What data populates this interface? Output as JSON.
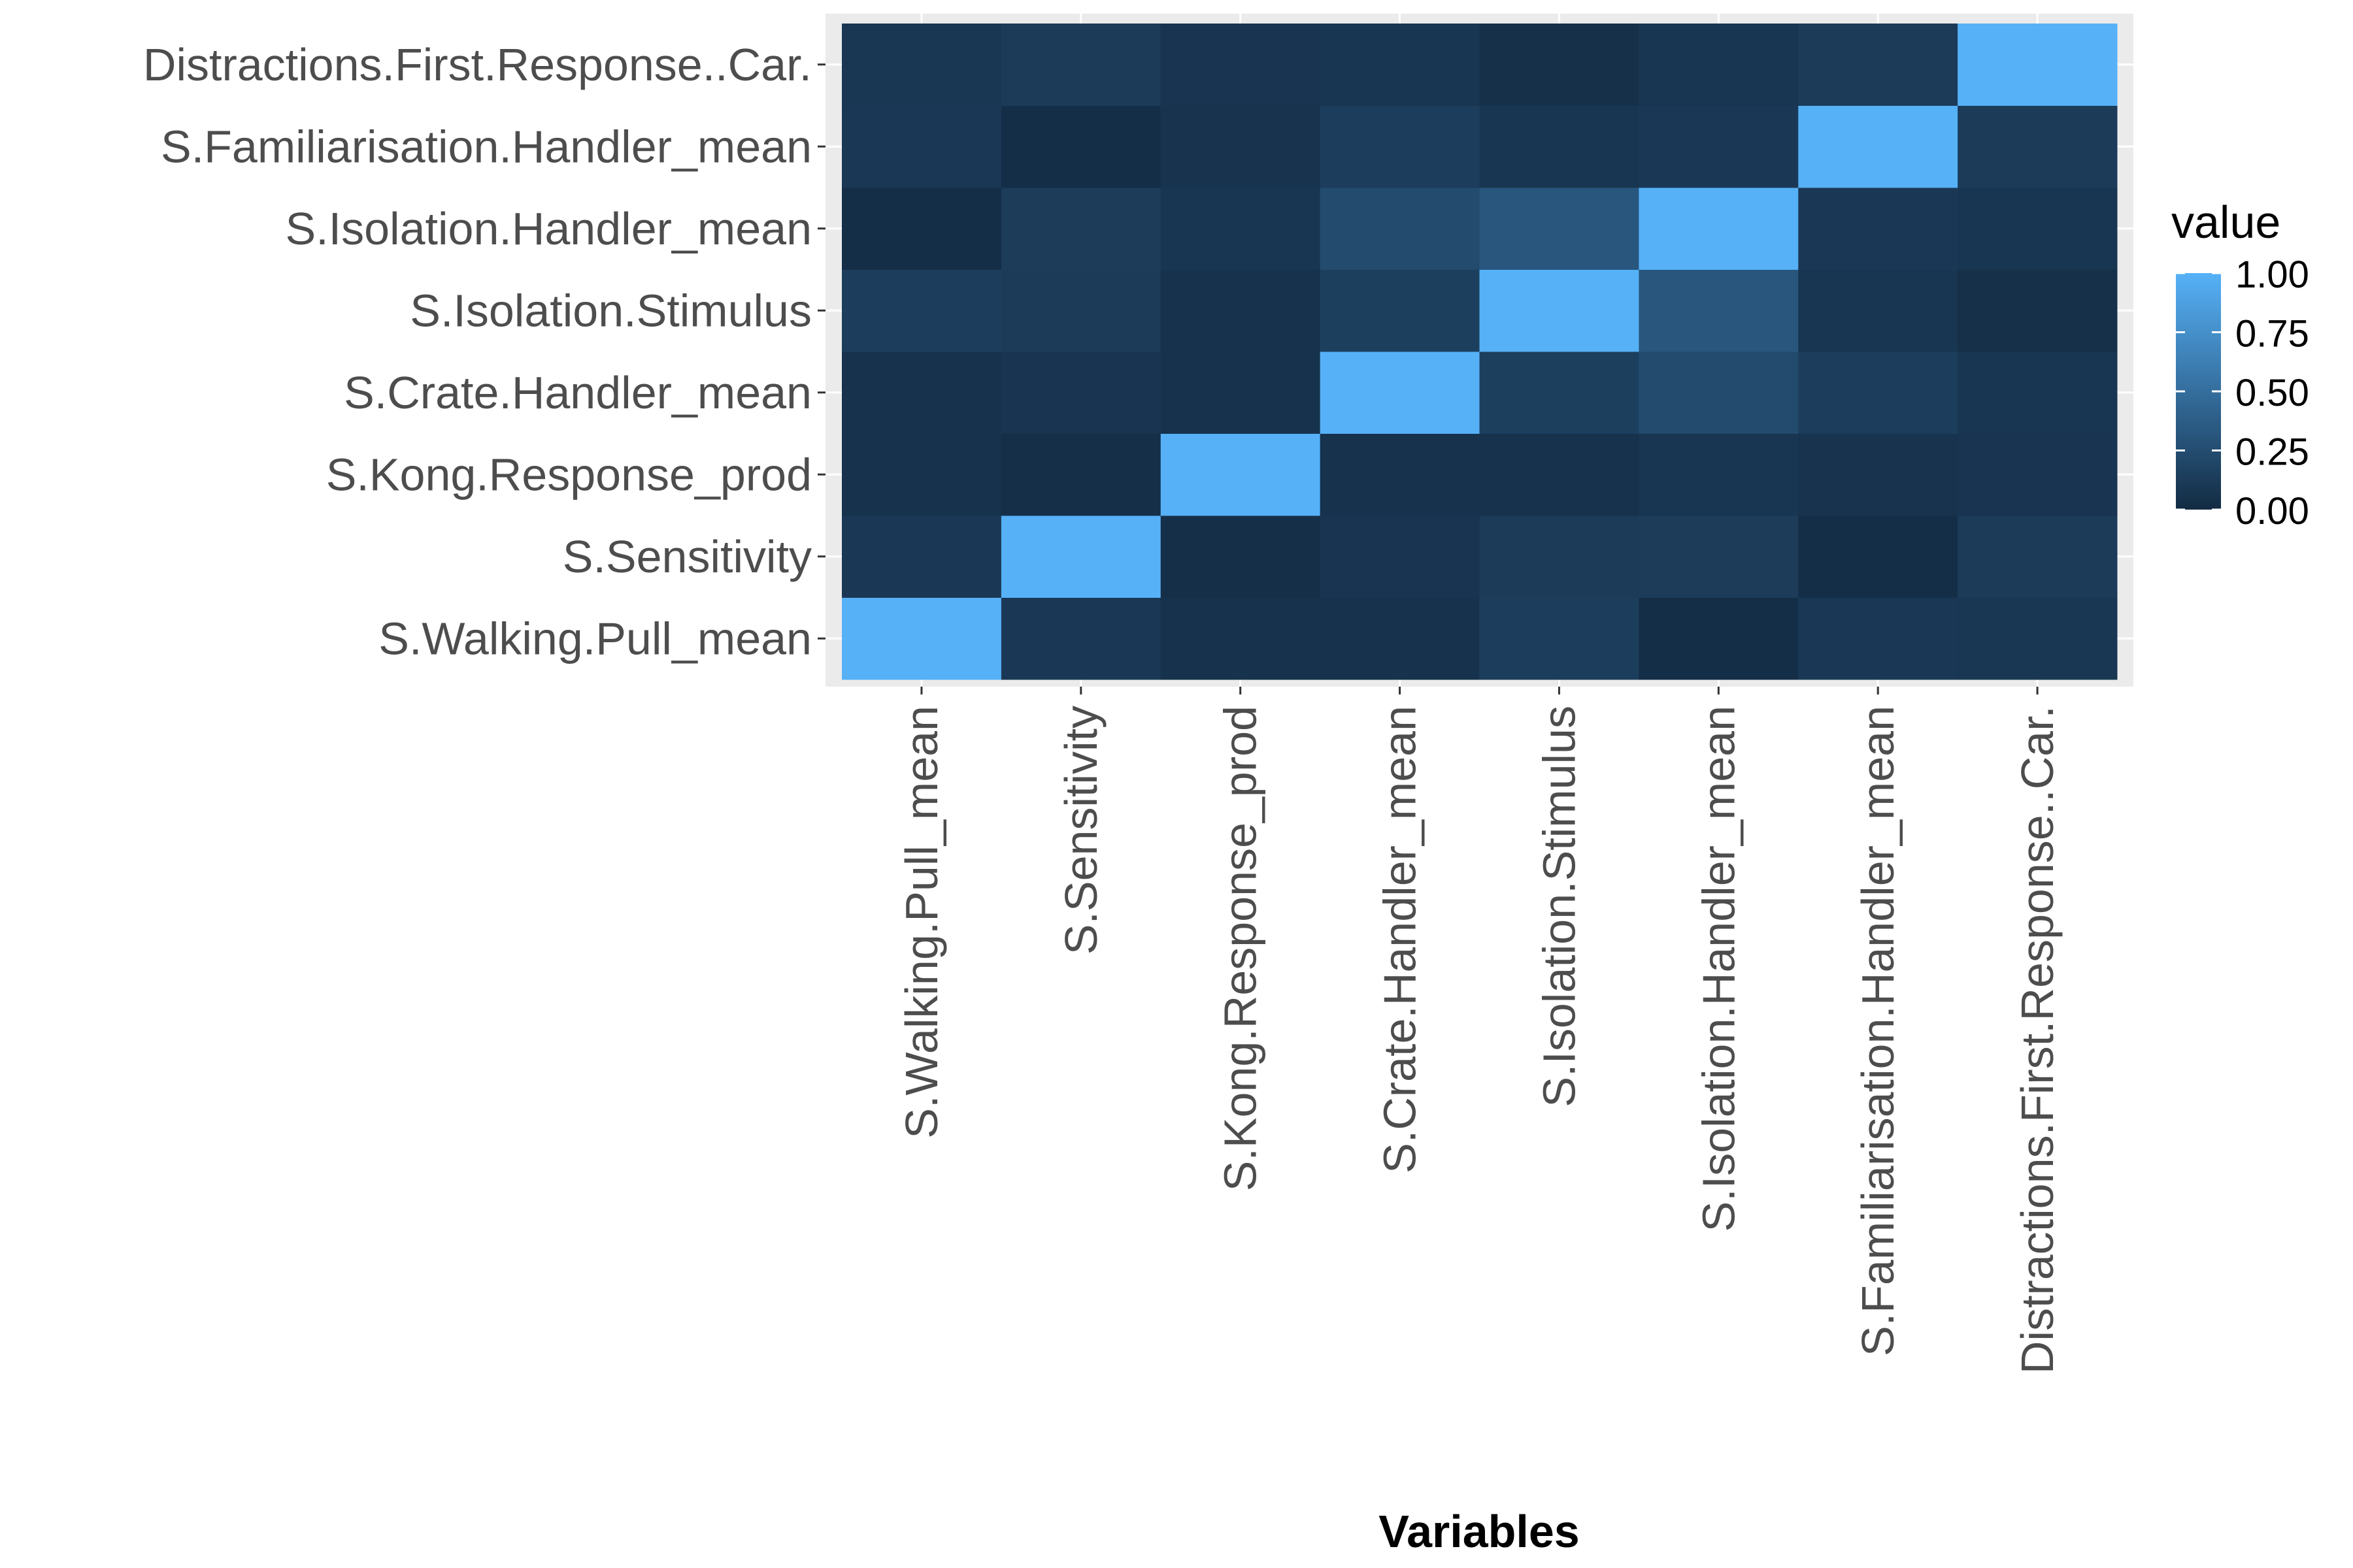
{
  "chart_data": {
    "type": "heatmap",
    "title": "",
    "xlabel": "Variables",
    "ylabel": "",
    "variables": [
      "S.Walking.Pull_mean",
      "S.Sensitivity",
      "S.Kong.Response_prod",
      "S.Crate.Handler_mean",
      "S.Isolation.Stimulus",
      "S.Isolation.Handler_mean",
      "S.Familiarisation.Handler_mean",
      "Distractions.First.Response..Car."
    ],
    "values": [
      [
        1.0,
        0.1,
        0.05,
        0.05,
        0.14,
        0.02,
        0.1,
        0.09
      ],
      [
        0.1,
        1.0,
        0.03,
        0.07,
        0.12,
        0.13,
        0.02,
        0.12
      ],
      [
        0.05,
        0.03,
        1.0,
        0.05,
        0.05,
        0.08,
        0.06,
        0.07
      ],
      [
        0.05,
        0.07,
        0.05,
        1.0,
        0.15,
        0.24,
        0.14,
        0.08
      ],
      [
        0.14,
        0.12,
        0.05,
        0.15,
        1.0,
        0.32,
        0.08,
        0.04
      ],
      [
        0.02,
        0.13,
        0.08,
        0.24,
        0.32,
        1.0,
        0.1,
        0.08
      ],
      [
        0.1,
        0.02,
        0.06,
        0.14,
        0.08,
        0.1,
        1.0,
        0.12
      ],
      [
        0.09,
        0.12,
        0.07,
        0.08,
        0.04,
        0.08,
        0.12,
        1.0
      ]
    ],
    "legend": {
      "title": "value",
      "ticks": [
        0.0,
        0.25,
        0.5,
        0.75,
        1.0
      ],
      "tick_labels": [
        "0.00",
        "0.25",
        "0.50",
        "0.75",
        "1.00"
      ],
      "low_color": "#132B43",
      "high_color": "#56B1F7",
      "placement": "right"
    },
    "panel_background": "#EBEBEB",
    "gridlines": "#FFFFFF"
  }
}
